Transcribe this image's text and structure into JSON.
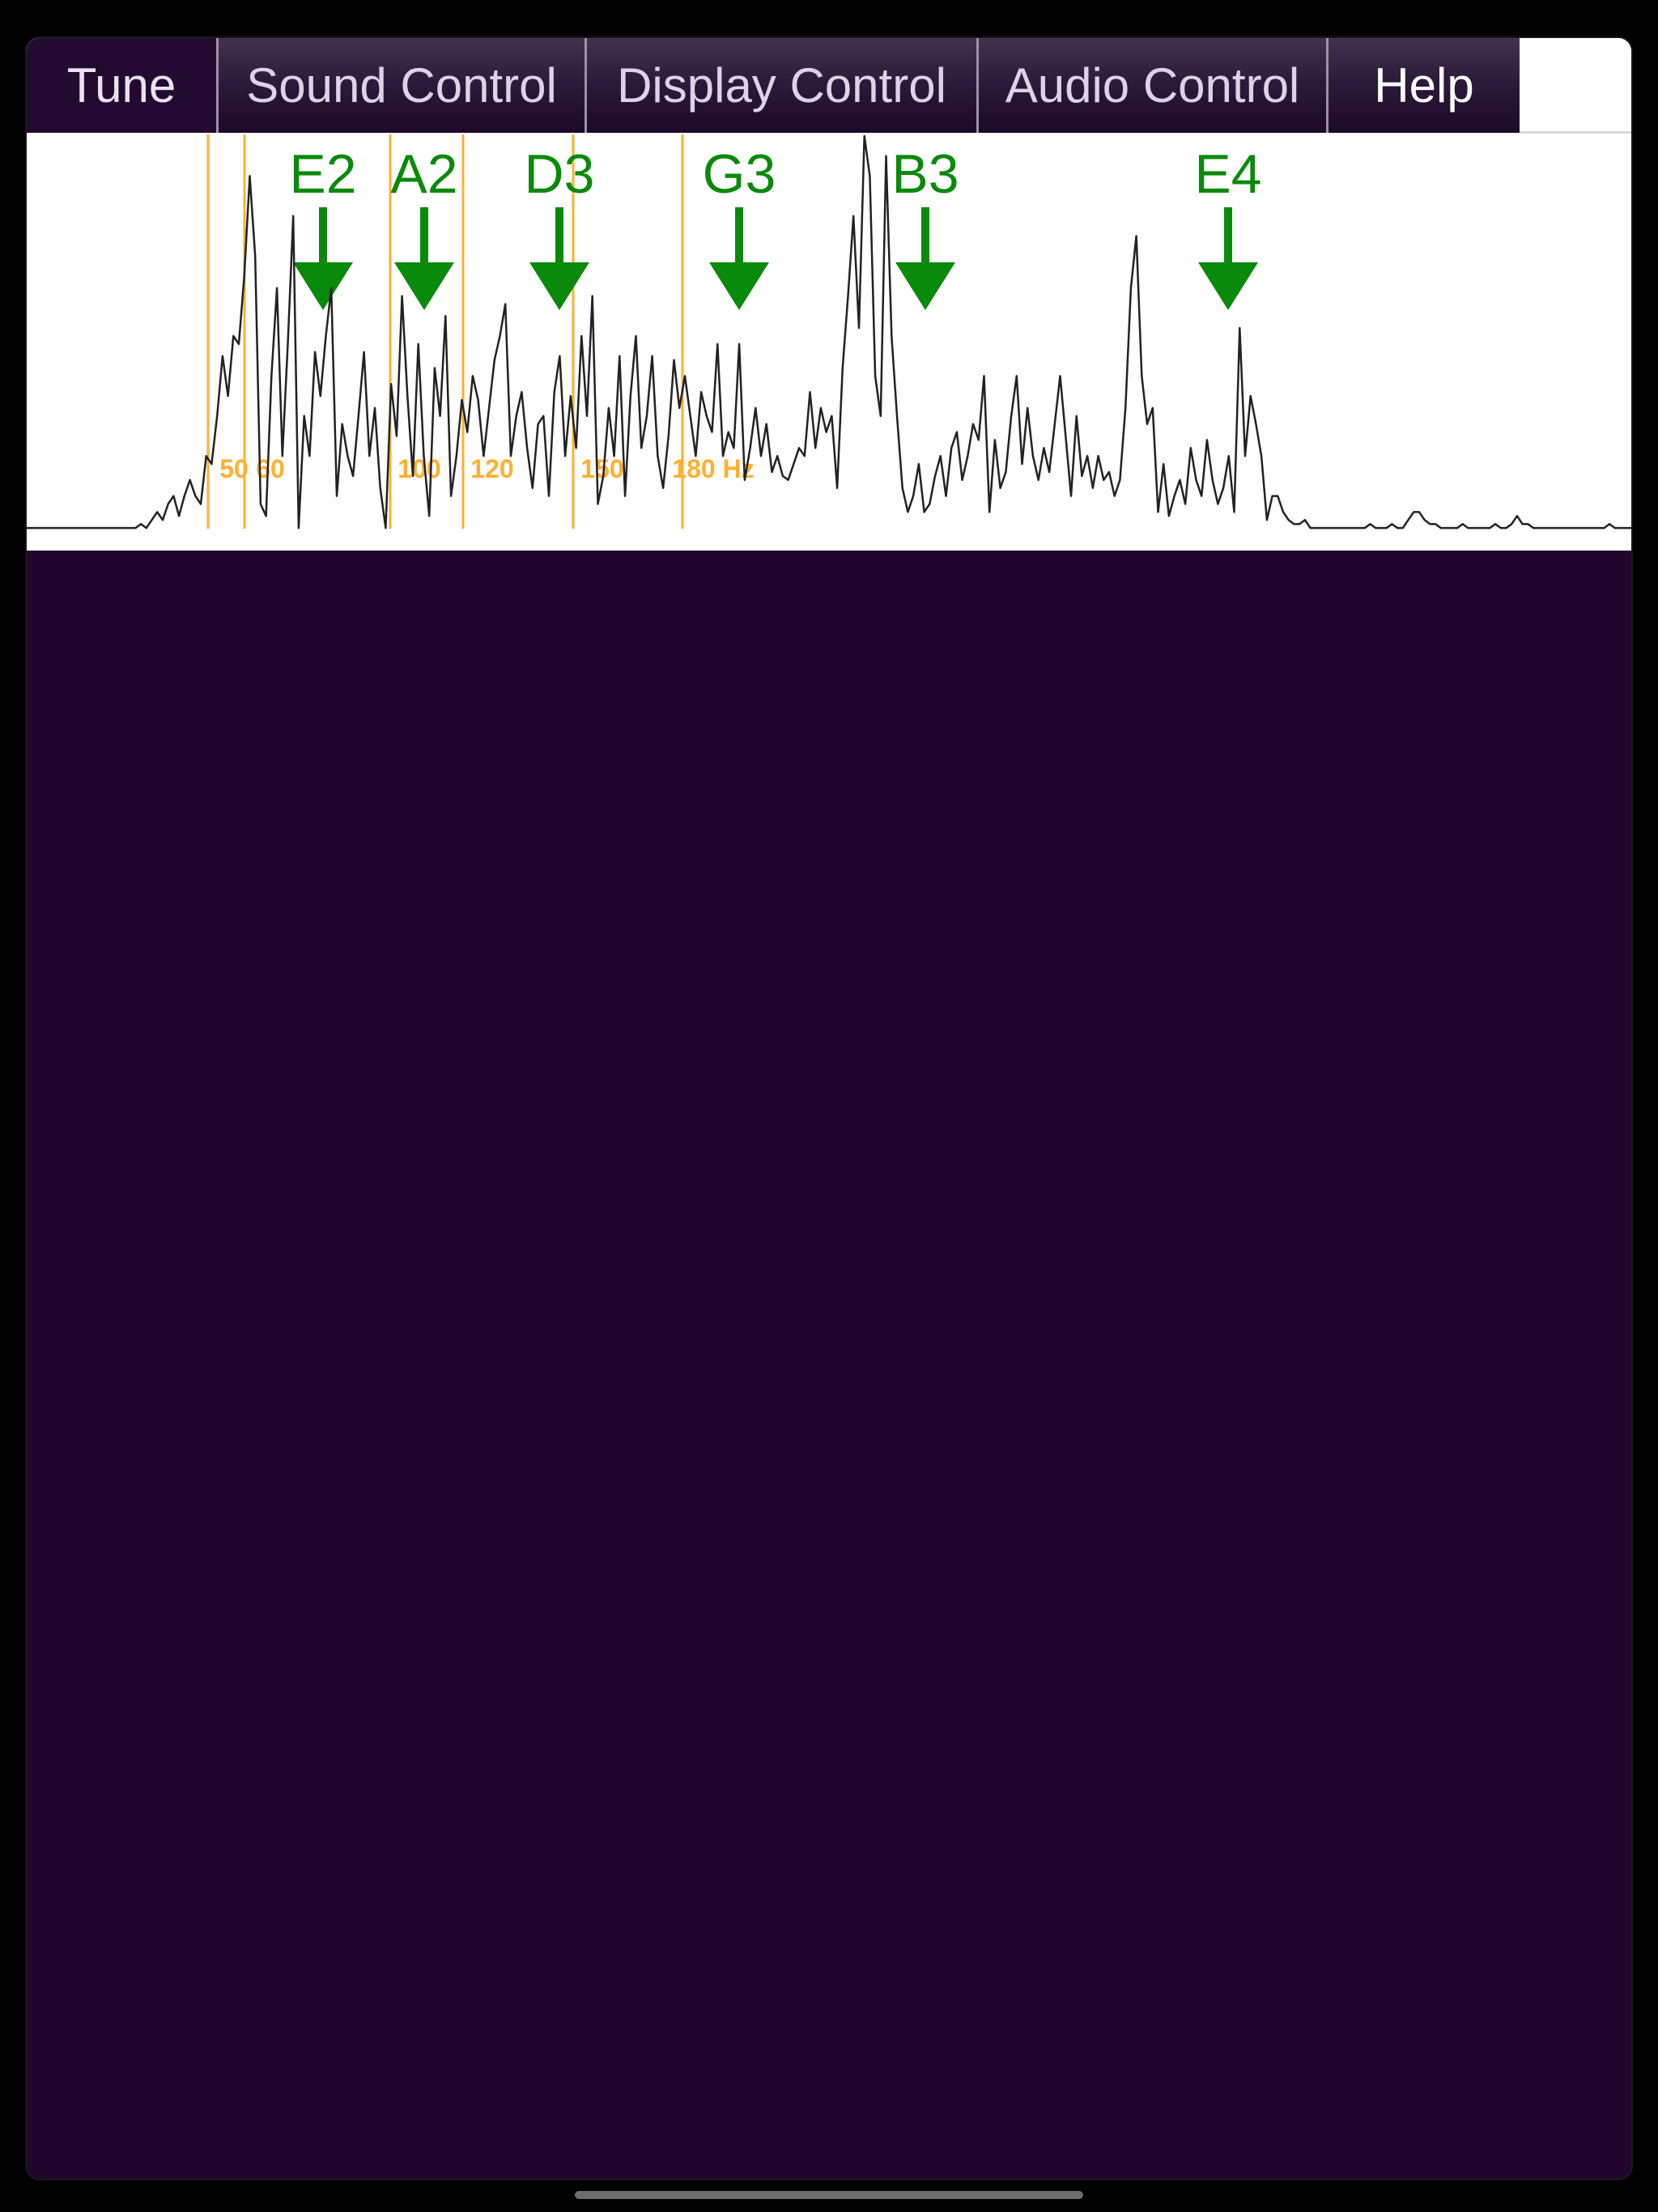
{
  "tabs": [
    {
      "label": "Tune"
    },
    {
      "label": "Sound Control"
    },
    {
      "label": "Display Control"
    },
    {
      "label": "Audio Control"
    },
    {
      "label": "Help"
    }
  ],
  "colors": {
    "app_background": "#20062c",
    "spectrum_background": "#ffffff",
    "spectrum_line": "#222222",
    "freq_gridline": "#ffb030",
    "note_marker": "#0a8a0a"
  },
  "spectrum": {
    "freq_labels": [
      "50",
      "60",
      "100",
      "120",
      "150",
      "180 Hz"
    ],
    "note_markers": [
      "E2",
      "A2",
      "D3",
      "G3",
      "B3",
      "E4"
    ],
    "trace_levels": [
      0.02,
      0.02,
      0.02,
      0.02,
      0.02,
      0.02,
      0.02,
      0.02,
      0.02,
      0.02,
      0.02,
      0.02,
      0.02,
      0.02,
      0.02,
      0.02,
      0.02,
      0.02,
      0.02,
      0.02,
      0.02,
      0.03,
      0.02,
      0.04,
      0.06,
      0.04,
      0.08,
      0.1,
      0.05,
      0.1,
      0.14,
      0.1,
      0.08,
      0.2,
      0.18,
      0.3,
      0.45,
      0.35,
      0.5,
      0.48,
      0.65,
      0.9,
      0.7,
      0.08,
      0.05,
      0.4,
      0.62,
      0.2,
      0.48,
      0.8,
      0.02,
      0.3,
      0.2,
      0.46,
      0.35,
      0.5,
      0.62,
      0.1,
      0.28,
      0.2,
      0.15,
      0.3,
      0.46,
      0.2,
      0.32,
      0.12,
      0.02,
      0.38,
      0.25,
      0.6,
      0.35,
      0.15,
      0.48,
      0.2,
      0.05,
      0.42,
      0.3,
      0.55,
      0.1,
      0.2,
      0.34,
      0.26,
      0.4,
      0.34,
      0.2,
      0.32,
      0.44,
      0.5,
      0.58,
      0.2,
      0.3,
      0.36,
      0.22,
      0.12,
      0.28,
      0.3,
      0.1,
      0.36,
      0.45,
      0.2,
      0.35,
      0.22,
      0.5,
      0.3,
      0.6,
      0.08,
      0.15,
      0.32,
      0.2,
      0.45,
      0.1,
      0.35,
      0.5,
      0.22,
      0.3,
      0.45,
      0.2,
      0.12,
      0.25,
      0.44,
      0.32,
      0.4,
      0.3,
      0.2,
      0.36,
      0.3,
      0.26,
      0.48,
      0.2,
      0.26,
      0.22,
      0.48,
      0.14,
      0.22,
      0.32,
      0.2,
      0.28,
      0.16,
      0.2,
      0.15,
      0.14,
      0.18,
      0.22,
      0.2,
      0.36,
      0.22,
      0.32,
      0.26,
      0.3,
      0.12,
      0.42,
      0.6,
      0.8,
      0.52,
      1.0,
      0.9,
      0.4,
      0.3,
      0.95,
      0.5,
      0.3,
      0.12,
      0.06,
      0.1,
      0.18,
      0.06,
      0.08,
      0.15,
      0.2,
      0.1,
      0.22,
      0.26,
      0.14,
      0.2,
      0.28,
      0.24,
      0.4,
      0.06,
      0.24,
      0.12,
      0.16,
      0.3,
      0.4,
      0.18,
      0.32,
      0.2,
      0.14,
      0.22,
      0.16,
      0.28,
      0.4,
      0.25,
      0.1,
      0.3,
      0.15,
      0.2,
      0.12,
      0.2,
      0.14,
      0.16,
      0.1,
      0.14,
      0.32,
      0.62,
      0.75,
      0.4,
      0.28,
      0.32,
      0.06,
      0.18,
      0.05,
      0.1,
      0.14,
      0.08,
      0.22,
      0.14,
      0.1,
      0.24,
      0.14,
      0.08,
      0.12,
      0.2,
      0.06,
      0.52,
      0.2,
      0.35,
      0.28,
      0.2,
      0.04,
      0.1,
      0.1,
      0.06,
      0.04,
      0.03,
      0.03,
      0.04,
      0.02,
      0.02,
      0.02,
      0.02,
      0.02,
      0.02,
      0.02,
      0.02,
      0.02,
      0.02,
      0.02,
      0.03,
      0.02,
      0.02,
      0.02,
      0.03,
      0.02,
      0.02,
      0.04,
      0.06,
      0.06,
      0.04,
      0.03,
      0.03,
      0.02,
      0.02,
      0.02,
      0.02,
      0.03,
      0.02,
      0.02,
      0.02,
      0.02,
      0.02,
      0.03,
      0.02,
      0.02,
      0.03,
      0.05,
      0.03,
      0.03,
      0.02,
      0.02,
      0.02,
      0.02,
      0.02,
      0.02,
      0.02,
      0.02,
      0.02,
      0.02,
      0.02,
      0.02,
      0.02,
      0.02,
      0.03,
      0.02,
      0.02,
      0.02,
      0.02
    ]
  }
}
